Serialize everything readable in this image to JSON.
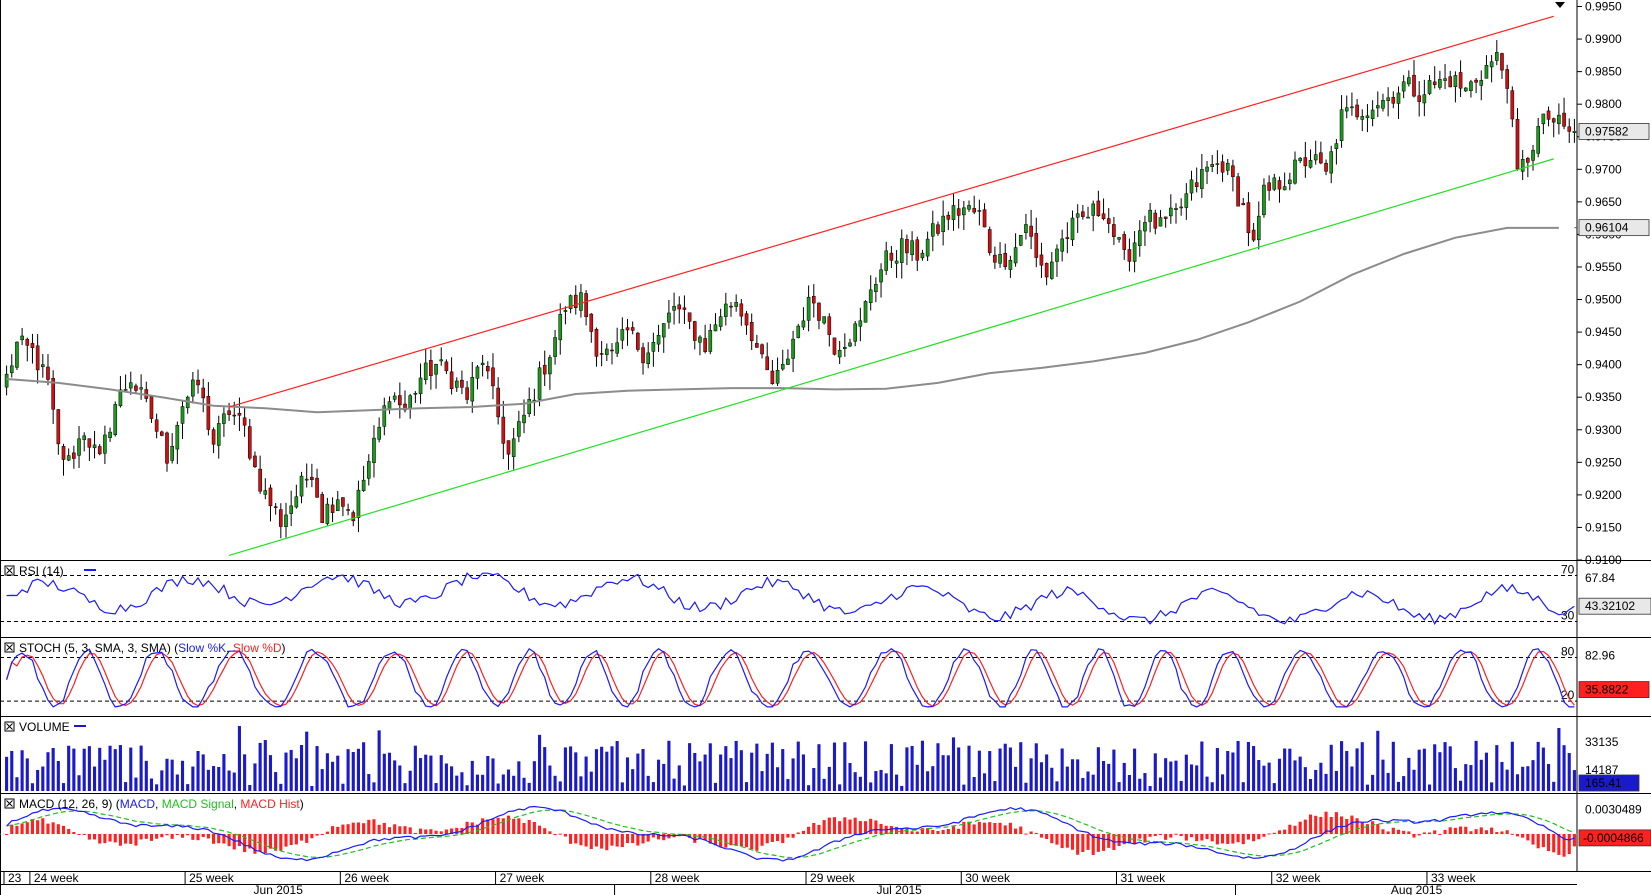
{
  "chart_data": {
    "type": "candlestick",
    "instrument_panel": {
      "price_axis_ticks": [
        "0.9950",
        "0.9900",
        "0.9850",
        "0.9800",
        "0.9750",
        "0.9700",
        "0.9650",
        "0.9600",
        "0.9550",
        "0.9500",
        "0.9450",
        "0.9400",
        "0.9350",
        "0.9300",
        "0.9250",
        "0.9200",
        "0.9150",
        "0.9100"
      ],
      "price_range": [
        0.91,
        0.996
      ],
      "last_price_label": "0.97582",
      "last_price": 0.97582,
      "ma_label": "0.96104",
      "ma_value": 0.96104,
      "colors": {
        "up": "#1a9a1a",
        "down": "#d01010",
        "upper_channel": "#ff2020",
        "lower_channel": "#20e020",
        "moving_average": "#8c8c8c"
      },
      "upper_channel": {
        "from": {
          "bar": 43,
          "price": 0.9335
        },
        "to": {
          "bar": 299,
          "price": 0.9935
        }
      },
      "lower_channel": {
        "from": {
          "bar": 43,
          "price": 0.9107
        },
        "to": {
          "bar": 299,
          "price": 0.9716
        }
      },
      "moving_average_points": [
        [
          0,
          0.9378
        ],
        [
          10,
          0.9372
        ],
        [
          20,
          0.9362
        ],
        [
          30,
          0.935
        ],
        [
          40,
          0.9337
        ],
        [
          50,
          0.9333
        ],
        [
          60,
          0.9327
        ],
        [
          70,
          0.933
        ],
        [
          80,
          0.9333
        ],
        [
          90,
          0.9335
        ],
        [
          100,
          0.934
        ],
        [
          110,
          0.9355
        ],
        [
          120,
          0.936
        ],
        [
          130,
          0.9362
        ],
        [
          140,
          0.9364
        ],
        [
          150,
          0.9364
        ],
        [
          160,
          0.9362
        ],
        [
          170,
          0.9363
        ],
        [
          180,
          0.9372
        ],
        [
          190,
          0.9387
        ],
        [
          200,
          0.9395
        ],
        [
          210,
          0.9405
        ],
        [
          220,
          0.9418
        ],
        [
          230,
          0.9438
        ],
        [
          240,
          0.9465
        ],
        [
          250,
          0.9497
        ],
        [
          260,
          0.9538
        ],
        [
          270,
          0.957
        ],
        [
          280,
          0.9595
        ],
        [
          290,
          0.961
        ],
        [
          300,
          0.961
        ]
      ],
      "candle_anchors": [
        [
          0,
          0.938
        ],
        [
          2,
          0.943
        ],
        [
          5,
          0.942
        ],
        [
          8,
          0.937
        ],
        [
          10,
          0.927
        ],
        [
          12,
          0.925
        ],
        [
          15,
          0.93
        ],
        [
          18,
          0.925
        ],
        [
          21,
          0.934
        ],
        [
          24,
          0.938
        ],
        [
          28,
          0.932
        ],
        [
          31,
          0.926
        ],
        [
          34,
          0.934
        ],
        [
          37,
          0.937
        ],
        [
          40,
          0.928
        ],
        [
          43,
          0.933
        ],
        [
          46,
          0.93
        ],
        [
          48,
          0.924
        ],
        [
          50,
          0.92
        ],
        [
          53,
          0.916
        ],
        [
          56,
          0.92
        ],
        [
          59,
          0.924
        ],
        [
          61,
          0.917
        ],
        [
          64,
          0.92
        ],
        [
          67,
          0.917
        ],
        [
          70,
          0.925
        ],
        [
          72,
          0.93
        ],
        [
          74,
          0.936
        ],
        [
          77,
          0.933
        ],
        [
          80,
          0.938
        ],
        [
          83,
          0.94
        ],
        [
          86,
          0.938
        ],
        [
          89,
          0.935
        ],
        [
          92,
          0.941
        ],
        [
          95,
          0.932
        ],
        [
          97,
          0.926
        ],
        [
          99,
          0.93
        ],
        [
          102,
          0.936
        ],
        [
          105,
          0.942
        ],
        [
          108,
          0.949
        ],
        [
          111,
          0.95
        ],
        [
          114,
          0.943
        ],
        [
          117,
          0.941
        ],
        [
          120,
          0.945
        ],
        [
          123,
          0.942
        ],
        [
          126,
          0.944
        ],
        [
          129,
          0.949
        ],
        [
          132,
          0.946
        ],
        [
          135,
          0.943
        ],
        [
          138,
          0.948
        ],
        [
          141,
          0.95
        ],
        [
          144,
          0.945
        ],
        [
          146,
          0.94
        ],
        [
          148,
          0.937
        ],
        [
          150,
          0.939
        ],
        [
          152,
          0.944
        ],
        [
          154,
          0.948
        ],
        [
          156,
          0.95
        ],
        [
          158,
          0.947
        ],
        [
          160,
          0.943
        ],
        [
          162,
          0.944
        ],
        [
          165,
          0.946
        ],
        [
          167,
          0.952
        ],
        [
          170,
          0.956
        ],
        [
          173,
          0.958
        ],
        [
          176,
          0.957
        ],
        [
          179,
          0.96
        ],
        [
          182,
          0.963
        ],
        [
          185,
          0.964
        ],
        [
          188,
          0.963
        ],
        [
          190,
          0.958
        ],
        [
          192,
          0.956
        ],
        [
          195,
          0.958
        ],
        [
          197,
          0.962
        ],
        [
          199,
          0.956
        ],
        [
          201,
          0.954
        ],
        [
          203,
          0.958
        ],
        [
          206,
          0.961
        ],
        [
          209,
          0.963
        ],
        [
          212,
          0.964
        ],
        [
          214,
          0.96
        ],
        [
          216,
          0.956
        ],
        [
          218,
          0.959
        ],
        [
          220,
          0.963
        ],
        [
          223,
          0.961
        ],
        [
          226,
          0.963
        ],
        [
          229,
          0.967
        ],
        [
          232,
          0.97
        ],
        [
          235,
          0.971
        ],
        [
          237,
          0.968
        ],
        [
          239,
          0.964
        ],
        [
          241,
          0.958
        ],
        [
          243,
          0.966
        ],
        [
          246,
          0.968
        ],
        [
          249,
          0.97
        ],
        [
          252,
          0.972
        ],
        [
          255,
          0.969
        ],
        [
          258,
          0.978
        ],
        [
          261,
          0.979
        ],
        [
          264,
          0.98
        ],
        [
          267,
          0.981
        ],
        [
          270,
          0.983
        ],
        [
          273,
          0.982
        ],
        [
          276,
          0.983
        ],
        [
          279,
          0.984
        ],
        [
          282,
          0.982
        ],
        [
          285,
          0.985
        ],
        [
          288,
          0.987
        ],
        [
          290,
          0.984
        ],
        [
          291,
          0.976
        ],
        [
          292,
          0.969
        ],
        [
          294,
          0.972
        ],
        [
          296,
          0.976
        ],
        [
          298,
          0.978
        ],
        [
          301,
          0.976
        ],
        [
          303,
          0.9758
        ]
      ],
      "bar_count": 304
    },
    "rsi": {
      "label": "RSI (14)",
      "levels": [
        "70",
        "30"
      ],
      "value_label": "67.84",
      "current_label": "43.32102",
      "color": "#1a1aff"
    },
    "stoch": {
      "label": "STOCH (5, 3, SMA, 3, SMA)",
      "legend": [
        "Slow %K",
        "Slow %D"
      ],
      "levels": [
        "80",
        "20"
      ],
      "value_label": "82.96",
      "current_label": "35.8822",
      "colors": [
        "#1a1aff",
        "#ff2020"
      ]
    },
    "volume": {
      "label": "VOLUME",
      "ticks": [
        "33135",
        "14187"
      ],
      "current_label": "165.41",
      "color": "#1a1acc"
    },
    "macd": {
      "label": "MACD (12, 26, 9)",
      "legend": [
        "MACD",
        "MACD Signal",
        "MACD Hist"
      ],
      "tick": "0.0030489",
      "current_label": "-0.0004866",
      "colors": [
        "#1a1aff",
        "#20c020",
        "#ff2020"
      ]
    },
    "x_axis": {
      "weeks": [
        {
          "label": "23",
          "bar": 0
        },
        {
          "label": "24 week",
          "bar": 5
        },
        {
          "label": "25 week",
          "bar": 35
        },
        {
          "label": "26 week",
          "bar": 65
        },
        {
          "label": "27 week",
          "bar": 95
        },
        {
          "label": "28 week",
          "bar": 125
        },
        {
          "label": "29 week",
          "bar": 155
        },
        {
          "label": "30 week",
          "bar": 185
        },
        {
          "label": "31 week",
          "bar": 215
        },
        {
          "label": "32 week",
          "bar": 245
        },
        {
          "label": "33 week",
          "bar": 275
        }
      ],
      "months": [
        {
          "label": "Jun 2015",
          "bar": 53
        },
        {
          "label": "Jul 2015",
          "bar": 173
        },
        {
          "label": "Aug 2015",
          "bar": 273
        }
      ]
    }
  }
}
